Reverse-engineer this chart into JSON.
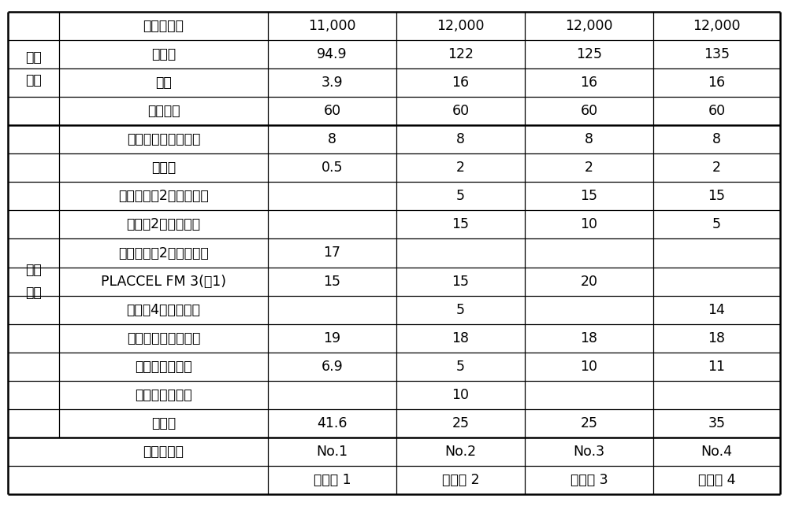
{
  "header_row": [
    "制备例 1",
    "制备例 2",
    "制备例 3",
    "制备例 4"
  ],
  "row1_label": "丙烯酸树脂",
  "row1_data": [
    "No.1",
    "No.2",
    "No.3",
    "No.4"
  ],
  "group1_label": "配比\n内容",
  "group1_rows": [
    [
      "苯乙烯",
      "41.6",
      "25",
      "25",
      "35"
    ],
    [
      "甲基丙烯酸甲酯",
      "",
      "10",
      "",
      ""
    ],
    [
      "丙烯酸正丁基酯",
      "6.9",
      "5",
      "10",
      "11"
    ],
    [
      "甲基丙烯酸异丁基酯",
      "19",
      "18",
      "18",
      "18"
    ],
    [
      "丙烯酸4－羟基丁酯",
      "",
      "5",
      "",
      "14"
    ],
    [
      "PLACCEL FM 3(注1)",
      "15",
      "15",
      "20",
      ""
    ],
    [
      "甲基丙烯酸2－羟基乙酯",
      "17",
      "",
      "",
      ""
    ],
    [
      "丙烯酸2－羟基丙酯",
      "",
      "15",
      "10",
      "5"
    ],
    [
      "甲基丙烯酸2－羟基丙酯",
      "",
      "5",
      "15",
      "15"
    ],
    [
      "丙烯酸",
      "0.5",
      "2",
      "2",
      "2"
    ],
    [
      "二叔丁基氢过氧化物",
      "8",
      "8",
      "8",
      "8"
    ]
  ],
  "group2_label": "树脂\n特征",
  "group2_rows": [
    [
      "固体成分",
      "60",
      "60",
      "60",
      "60"
    ],
    [
      "酸值",
      "3.9",
      "16",
      "16",
      "16"
    ],
    [
      "羟基值",
      "94.9",
      "122",
      "125",
      "135"
    ],
    [
      "重均分子量",
      "11,000",
      "12,000",
      "12,000",
      "12,000"
    ]
  ],
  "bg_color": "#ffffff",
  "line_color": "#000000",
  "text_color": "#000000"
}
